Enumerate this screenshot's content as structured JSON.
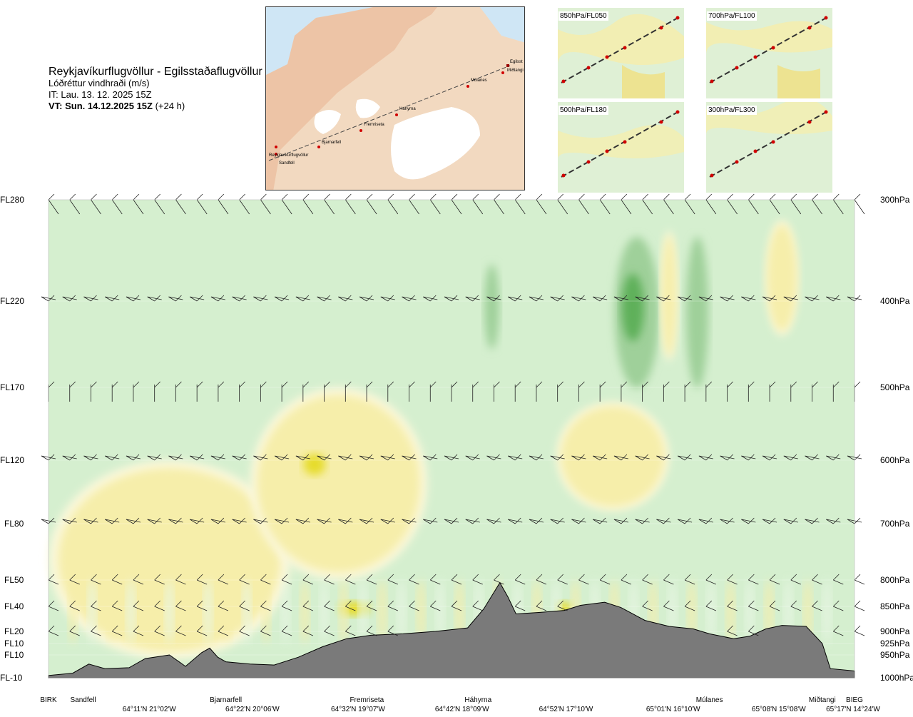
{
  "header": {
    "title": "Reykjavíkurflugvöllur - Egilsstaðaflugvöllur",
    "subtitle": "Lóðréttur vindhraði (m/s)",
    "issue_time": "IT: Lau. 13. 12. 2025 15Z",
    "valid_time": "VT: Sun. 14.12.2025 15Z",
    "valid_offset": "(+24 h)"
  },
  "map": {
    "points": [
      "Reykjavíkurflugvöllur",
      "Sandfell",
      "Bjarnarfell",
      "Fremriseta",
      "Háhyrna",
      "Múlanes",
      "Egilsst",
      "Miðtangi"
    ]
  },
  "insets": [
    {
      "label": "850hPa/FL050"
    },
    {
      "label": "700hPa/FL100"
    },
    {
      "label": "500hPa/FL180"
    },
    {
      "label": "300hPa/FL300"
    }
  ],
  "colors": {
    "upward_weak": "#f6eeaa",
    "upward_strong": "#e6dc2a",
    "downward_weak": "#cfeccc",
    "downward_mid": "#9fd09a",
    "downward_strong": "#5fb05a",
    "terrain": "#7a7a7a",
    "background": "#d5efcf"
  },
  "chart_data": {
    "type": "heatmap",
    "title": "Lóðréttur vindhraði (m/s)",
    "y_left_labels": [
      {
        "label": "FL280",
        "hpa": 300
      },
      {
        "label": "FL220",
        "hpa": 400
      },
      {
        "label": "FL170",
        "hpa": 500
      },
      {
        "label": "FL120",
        "hpa": 600
      },
      {
        "label": "FL80",
        "hpa": 700
      },
      {
        "label": "FL50",
        "hpa": 800
      },
      {
        "label": "FL40",
        "hpa": 850
      },
      {
        "label": "FL20",
        "hpa": 900
      },
      {
        "label": "FL10",
        "hpa": 925
      },
      {
        "label": "FL10",
        "hpa": 950
      },
      {
        "label": "FL-10",
        "hpa": 1000
      }
    ],
    "y_right_labels": [
      "300hPa",
      "400hPa",
      "500hPa",
      "600hPa",
      "700hPa",
      "800hPa",
      "850hPa",
      "900hPa",
      "925hPa",
      "950hPa",
      "1000hPa"
    ],
    "x_distance_fraction_of_route": [
      0,
      0.04,
      0.16,
      0.29,
      0.42,
      0.55,
      0.68,
      0.81,
      0.93,
      0.96,
      1.0
    ],
    "x_place_labels": [
      {
        "name": "BIRK",
        "frac": 0.0
      },
      {
        "name": "Sandfell",
        "frac": 0.043
      },
      {
        "name": "Bjarnarfell",
        "frac": 0.22
      },
      {
        "name": "Fremriseta",
        "frac": 0.395
      },
      {
        "name": "Háhyrna",
        "frac": 0.533
      },
      {
        "name": "Múlanes",
        "frac": 0.82
      },
      {
        "name": "Miðtangi",
        "frac": 0.96
      },
      {
        "name": "BIEG",
        "frac": 1.0
      }
    ],
    "x_coord_labels": [
      {
        "name": "64°11'N 21°02'W",
        "frac": 0.125
      },
      {
        "name": "64°22'N 20°06'W",
        "frac": 0.253
      },
      {
        "name": "64°32'N 19°07'W",
        "frac": 0.384
      },
      {
        "name": "64°42'N 18°09'W",
        "frac": 0.513
      },
      {
        "name": "64°52'N 17°10'W",
        "frac": 0.642
      },
      {
        "name": "65°01'N 16°10'W",
        "frac": 0.775
      },
      {
        "name": "65°08'N 15°08'W",
        "frac": 0.906
      },
      {
        "name": "65°17'N 14°24'W",
        "frac": 1.0
      }
    ],
    "terrain_profile_hpa": [
      [
        0,
        995
      ],
      [
        0.03,
        990
      ],
      [
        0.05,
        970
      ],
      [
        0.07,
        980
      ],
      [
        0.1,
        978
      ],
      [
        0.12,
        958
      ],
      [
        0.15,
        950
      ],
      [
        0.17,
        975
      ],
      [
        0.19,
        945
      ],
      [
        0.2,
        935
      ],
      [
        0.21,
        955
      ],
      [
        0.22,
        965
      ],
      [
        0.25,
        970
      ],
      [
        0.28,
        972
      ],
      [
        0.31,
        955
      ],
      [
        0.34,
        932
      ],
      [
        0.37,
        915
      ],
      [
        0.4,
        908
      ],
      [
        0.44,
        905
      ],
      [
        0.48,
        900
      ],
      [
        0.52,
        893
      ],
      [
        0.54,
        855
      ],
      [
        0.56,
        805
      ],
      [
        0.57,
        832
      ],
      [
        0.58,
        865
      ],
      [
        0.61,
        862
      ],
      [
        0.64,
        858
      ],
      [
        0.66,
        848
      ],
      [
        0.69,
        842
      ],
      [
        0.71,
        852
      ],
      [
        0.74,
        878
      ],
      [
        0.77,
        890
      ],
      [
        0.8,
        895
      ],
      [
        0.82,
        905
      ],
      [
        0.85,
        915
      ],
      [
        0.87,
        910
      ],
      [
        0.89,
        895
      ],
      [
        0.91,
        888
      ],
      [
        0.94,
        890
      ],
      [
        0.96,
        925
      ],
      [
        0.97,
        980
      ],
      [
        1.0,
        985
      ]
    ],
    "vertical_velocity_features": [
      {
        "sign": "up",
        "intensity": "weak",
        "x": [
          0.0,
          0.3
        ],
        "p": [
          600,
          960
        ]
      },
      {
        "sign": "up",
        "intensity": "weak",
        "x": [
          0.25,
          0.47
        ],
        "p": [
          500,
          800
        ]
      },
      {
        "sign": "up",
        "intensity": "weak",
        "x": [
          0.63,
          0.77
        ],
        "p": [
          520,
          680
        ]
      },
      {
        "sign": "up",
        "intensity": "strong",
        "x": [
          0.315,
          0.345
        ],
        "p": [
          590,
          625
        ]
      },
      {
        "sign": "up",
        "intensity": "strong",
        "x": [
          0.36,
          0.4
        ],
        "p": [
          840,
          870
        ]
      },
      {
        "sign": "up",
        "intensity": "strong",
        "x": [
          0.63,
          0.65
        ],
        "p": [
          840,
          870
        ]
      },
      {
        "sign": "down",
        "intensity": "mid",
        "x": [
          0.54,
          0.56
        ],
        "p": [
          360,
          460
        ]
      },
      {
        "sign": "down",
        "intensity": "mid",
        "x": [
          0.7,
          0.76
        ],
        "p": [
          330,
          510
        ]
      },
      {
        "sign": "down",
        "intensity": "strong",
        "x": [
          0.71,
          0.74
        ],
        "p": [
          370,
          450
        ]
      },
      {
        "sign": "down",
        "intensity": "mid",
        "x": [
          0.79,
          0.82
        ],
        "p": [
          330,
          510
        ]
      },
      {
        "sign": "up",
        "intensity": "weak",
        "x": [
          0.76,
          0.78
        ],
        "p": [
          330,
          470
        ]
      },
      {
        "sign": "up",
        "intensity": "weak",
        "x": [
          0.89,
          0.93
        ],
        "p": [
          320,
          440
        ]
      }
    ],
    "legend": "none",
    "grid": false
  }
}
